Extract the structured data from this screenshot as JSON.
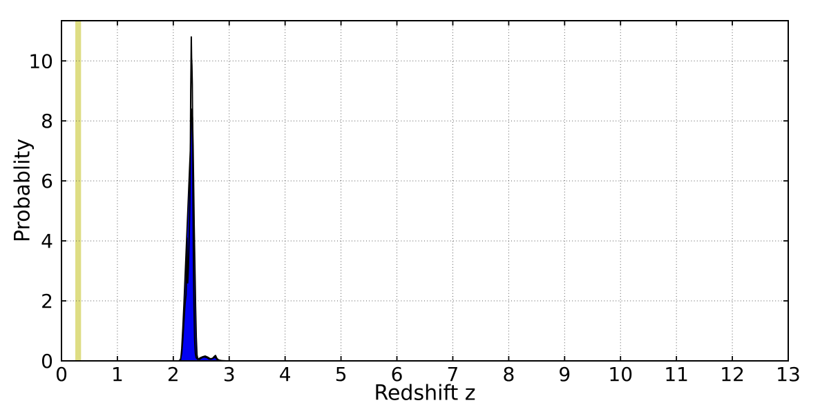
{
  "figure": {
    "background": "#ffffff",
    "frame_color": "#000000"
  },
  "chart_data": {
    "type": "area",
    "title": "",
    "xlabel": "Redshift  z",
    "ylabel": "Probablity",
    "xlim": [
      0,
      13
    ],
    "ylim": [
      0,
      11.34
    ],
    "xticks": [
      0,
      1,
      2,
      3,
      4,
      5,
      6,
      7,
      8,
      9,
      10,
      11,
      12,
      13
    ],
    "yticks": [
      0,
      2,
      4,
      6,
      8,
      10
    ],
    "grid": {
      "on": true,
      "style": "dotted",
      "color": "#555555"
    },
    "legend": {
      "visible": false
    },
    "band": {
      "name": "reference-redshift-band",
      "x0": 0.247,
      "x1": 0.35,
      "color": "#dedd84"
    },
    "series": [
      {
        "name": "pdf-filled",
        "kind": "area",
        "fill": "#0202f2",
        "stroke": "#000000",
        "stroke_width": 1.8,
        "points": [
          [
            2.13,
            0
          ],
          [
            2.15,
            0.4
          ],
          [
            2.17,
            1.1
          ],
          [
            2.19,
            1.9
          ],
          [
            2.21,
            2.8
          ],
          [
            2.23,
            3.7
          ],
          [
            2.25,
            4.6
          ],
          [
            2.27,
            5.5
          ],
          [
            2.29,
            6.4
          ],
          [
            2.31,
            7.3
          ],
          [
            2.325,
            8.1
          ],
          [
            2.335,
            8.4
          ],
          [
            2.345,
            8.1
          ],
          [
            2.355,
            7.2
          ],
          [
            2.365,
            5.9
          ],
          [
            2.375,
            4.5
          ],
          [
            2.39,
            2.9
          ],
          [
            2.4,
            1.8
          ],
          [
            2.412,
            0.8
          ],
          [
            2.425,
            0.2
          ],
          [
            2.44,
            0.06
          ],
          [
            2.47,
            0.05
          ],
          [
            2.51,
            0.1
          ],
          [
            2.55,
            0.13
          ],
          [
            2.6,
            0.11
          ],
          [
            2.64,
            0.06
          ],
          [
            2.68,
            0.06
          ],
          [
            2.72,
            0.1
          ],
          [
            2.75,
            0.12
          ],
          [
            2.78,
            0.05
          ],
          [
            2.82,
            0.02
          ],
          [
            2.9,
            0
          ]
        ]
      },
      {
        "name": "pdf-outline",
        "kind": "line",
        "stroke": "#000000",
        "stroke_width": 2,
        "points": [
          [
            0,
            0
          ],
          [
            2.1,
            0
          ],
          [
            2.13,
            0.05
          ],
          [
            2.15,
            0.25
          ],
          [
            2.17,
            0.7
          ],
          [
            2.19,
            1.3
          ],
          [
            2.21,
            1.9
          ],
          [
            2.228,
            2.2
          ],
          [
            2.238,
            3.0
          ],
          [
            2.244,
            4.1
          ],
          [
            2.25,
            3.0
          ],
          [
            2.258,
            2.6
          ],
          [
            2.27,
            3.1
          ],
          [
            2.285,
            4.2
          ],
          [
            2.295,
            5.2
          ],
          [
            2.305,
            6.8
          ],
          [
            2.312,
            9.0
          ],
          [
            2.317,
            9.8
          ],
          [
            2.322,
            10.8
          ],
          [
            2.327,
            10.1
          ],
          [
            2.333,
            9.85
          ],
          [
            2.34,
            9.2
          ],
          [
            2.347,
            7.4
          ],
          [
            2.353,
            5.2
          ],
          [
            2.36,
            3.4
          ],
          [
            2.37,
            1.8
          ],
          [
            2.382,
            0.7
          ],
          [
            2.395,
            0.25
          ],
          [
            2.41,
            0.1
          ],
          [
            2.44,
            0.05
          ],
          [
            2.48,
            0.1
          ],
          [
            2.53,
            0.14
          ],
          [
            2.57,
            0.16
          ],
          [
            2.62,
            0.12
          ],
          [
            2.66,
            0.07
          ],
          [
            2.7,
            0.08
          ],
          [
            2.73,
            0.14
          ],
          [
            2.755,
            0.18
          ],
          [
            2.78,
            0.08
          ],
          [
            2.81,
            0.03
          ],
          [
            2.86,
            0.01
          ],
          [
            2.95,
            0
          ],
          [
            13,
            0
          ]
        ]
      }
    ]
  }
}
